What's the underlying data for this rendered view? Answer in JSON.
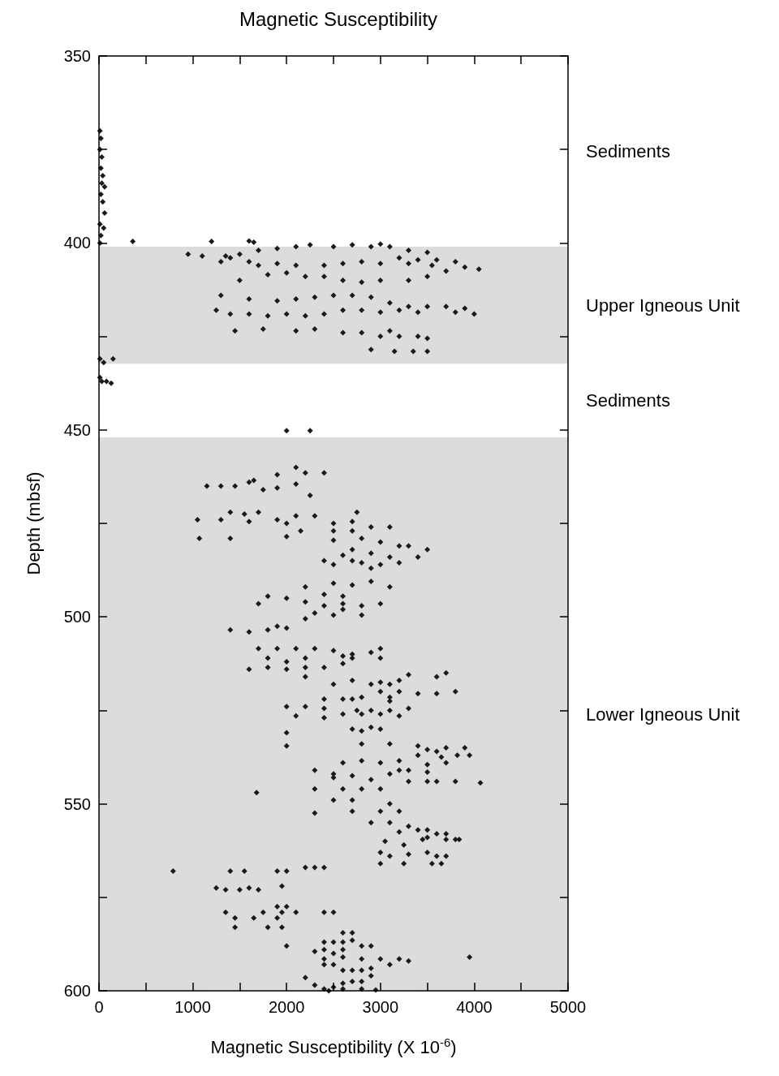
{
  "chart_data": {
    "type": "scatter",
    "title": "Magnetic Susceptibility",
    "xlabel": "Magnetic Susceptibility (X 10$^{-6}$)",
    "ylabel": "Depth (mbsf)",
    "xlim": [
      0,
      5000
    ],
    "xticks": [
      0,
      {
        "value": 500,
        "label": null
      },
      1000,
      {
        "value": 1500,
        "label": null
      },
      2000,
      {
        "value": 2500,
        "label": null
      },
      3000,
      {
        "value": 3500,
        "label": null
      },
      4000,
      {
        "value": 4500,
        "label": null
      },
      5000
    ],
    "ylim": [
      600,
      350
    ],
    "yticks": [
      350,
      {
        "value": 375,
        "label": null
      },
      400,
      {
        "value": 425,
        "label": null
      },
      450,
      {
        "value": 475,
        "label": null
      },
      500,
      {
        "value": 525,
        "label": null
      },
      550,
      {
        "value": 575,
        "label": null
      },
      600
    ],
    "grid": false,
    "marker": "diamond",
    "annotations": [
      "Sediments",
      "Sediments"
    ],
    "bands": [
      {
        "axis": "y",
        "from": 401,
        "to": 432.3,
        "label": "Upper Igneous Unit",
        "color": "#dcdcdc"
      },
      {
        "axis": "y",
        "from": 452,
        "to": 600,
        "label": "Lower Igneous Unit",
        "color": "#dcdcdc"
      }
    ],
    "series": [
      {
        "color": "#1a1a1a",
        "x": [
          10,
          20,
          10,
          30,
          20,
          40,
          30,
          60,
          20,
          40,
          60,
          10,
          50,
          20,
          10,
          360,
          1200,
          1600,
          1650,
          950,
          1100,
          1350,
          1500,
          1700,
          1900,
          2100,
          2250,
          2500,
          2700,
          2900,
          3000,
          3100,
          3300,
          3500,
          3200,
          3400,
          3600,
          3800,
          3900,
          4050,
          3700,
          3550,
          3300,
          3000,
          2800,
          2600,
          2400,
          2100,
          1900,
          1700,
          1600,
          1400,
          1300,
          1500,
          2200,
          2400,
          2600,
          2800,
          3000,
          3300,
          3500,
          1800,
          2000,
          1300,
          1600,
          1900,
          2100,
          2300,
          2500,
          2700,
          2900,
          3100,
          3300,
          3500,
          3700,
          3900,
          4000,
          3800,
          3400,
          3200,
          3000,
          2800,
          2600,
          2400,
          2200,
          2000,
          1800,
          1600,
          1400,
          1250,
          1450,
          1750,
          2100,
          2300,
          2600,
          2800,
          3000,
          3200,
          3400,
          3500,
          3100,
          2900,
          3150,
          3350,
          3500,
          10,
          50,
          150,
          10,
          30,
          80,
          130,
          2000,
          2250,
          1150,
          1300,
          1450,
          1600,
          1750,
          1900,
          2100,
          1900,
          2100,
          2200,
          2400,
          2250,
          1650,
          1050,
          1300,
          1400,
          1550,
          1700,
          1900,
          2100,
          2300,
          2500,
          2700,
          2750,
          1600,
          2000,
          1070,
          1400,
          2000,
          2150,
          2500,
          2700,
          2900,
          3100,
          2500,
          2800,
          3000,
          3200,
          3300,
          3500,
          2700,
          2900,
          3100,
          2600,
          2400,
          2800,
          3000,
          3200,
          3400,
          2500,
          2900,
          2700,
          2200,
          2500,
          2700,
          2900,
          3100,
          2400,
          2600,
          1800,
          2000,
          2200,
          2400,
          2600,
          2800,
          3000,
          1700,
          2600,
          2300,
          2500,
          2800,
          2200,
          1400,
          1600,
          1800,
          1900,
          2000,
          1700,
          1900,
          2100,
          2300,
          2500,
          2700,
          2900,
          3000,
          2600,
          1800,
          2000,
          2200,
          2700,
          3000,
          1600,
          1800,
          2000,
          2200,
          2400,
          2600,
          2200,
          2500,
          2700,
          3700,
          3600,
          3300,
          3100,
          2900,
          3000,
          3200,
          3000,
          3200,
          3400,
          3600,
          3800,
          2700,
          3100,
          2400,
          2600,
          2800,
          3100,
          2000,
          2200,
          2400,
          2750,
          2900,
          3100,
          3300,
          2100,
          2400,
          2600,
          2800,
          3000,
          3200,
          2700,
          2900,
          3000,
          2800,
          2000,
          2000,
          2800,
          3100,
          3400,
          3700,
          3900,
          3500,
          3600,
          3400,
          3650,
          3820,
          3950,
          2600,
          2800,
          3000,
          3200,
          3500,
          3700,
          2300,
          3200,
          3300,
          3500,
          2500,
          2700,
          3100,
          2500,
          2900,
          3300,
          3500,
          3600,
          3800,
          4066,
          2300,
          2600,
          2800,
          3000,
          1680,
          2500,
          2700,
          3100,
          2300,
          2700,
          3000,
          3200,
          2900,
          3100,
          3300,
          3500,
          3700,
          3200,
          3400,
          3600,
          3500,
          3700,
          3800,
          3840,
          3050,
          3250,
          3450,
          3000,
          3100,
          3300,
          3500,
          3600,
          3700,
          3000,
          3250,
          3550,
          3650,
          790,
          1400,
          1550,
          1900,
          2000,
          2200,
          2300,
          2400,
          1250,
          1350,
          1500,
          1600,
          1700,
          1950,
          1900,
          2000,
          1350,
          1750,
          1950,
          2100,
          2400,
          2500,
          1450,
          1650,
          1900,
          1450,
          1800,
          1950,
          2600,
          2700,
          2400,
          2500,
          2600,
          2700,
          2000,
          2800,
          2900,
          2300,
          2400,
          2500,
          2600,
          2400,
          2600,
          2800,
          3000,
          3200,
          3300,
          3950,
          2400,
          2500,
          3100,
          2600,
          2700,
          2800,
          2900,
          2600,
          2700,
          2800,
          2900,
          2200,
          2300,
          2500,
          2600,
          2400,
          2800,
          2950,
          2450
        ],
        "values": [
          370,
          372,
          375,
          377,
          380,
          382,
          384,
          385,
          387,
          389,
          392,
          395,
          396,
          398,
          400,
          399.6,
          399.6,
          399.5,
          399.8,
          403,
          403.5,
          403.5,
          403,
          402,
          401.5,
          401,
          400.5,
          401,
          400.5,
          401,
          400.3,
          401,
          402,
          402.5,
          404,
          404.5,
          404.5,
          405,
          406.5,
          407,
          407.5,
          406,
          405.5,
          405.5,
          405,
          405.5,
          406,
          406,
          405.5,
          406,
          405,
          404,
          405,
          410,
          409,
          409,
          410,
          410.5,
          410,
          410,
          409,
          408.5,
          408,
          414,
          415,
          415.5,
          415,
          414.5,
          414,
          414,
          414.5,
          416,
          417,
          417,
          417,
          417.5,
          419,
          418.5,
          418.5,
          418,
          418.5,
          418,
          418,
          419,
          419.5,
          419,
          419.5,
          419,
          419,
          418,
          423.5,
          423,
          423.5,
          423,
          424,
          424,
          425,
          425,
          425,
          425.5,
          423.5,
          428.5,
          429,
          429,
          429,
          431,
          432,
          431,
          436,
          437,
          437,
          437.5,
          450.2,
          450.2,
          465,
          465,
          465,
          464,
          466,
          465.5,
          464.5,
          462,
          460,
          461.5,
          461.5,
          467.5,
          463.5,
          474,
          474,
          472,
          472.5,
          472,
          474,
          473,
          473,
          475,
          474.5,
          472,
          474.5,
          475,
          479,
          479,
          478.5,
          477,
          477,
          477,
          476,
          476,
          479.5,
          479,
          480,
          481,
          481,
          482,
          482,
          483,
          484,
          483.5,
          485,
          485.5,
          486,
          485.5,
          484,
          486,
          487,
          485,
          492,
          491,
          491.5,
          490.5,
          492,
          494,
          494.5,
          494.5,
          495,
          496,
          497,
          496.5,
          497,
          496.5,
          496.5,
          498,
          499,
          499.5,
          499.5,
          500.5,
          503.5,
          504,
          503.5,
          502.5,
          503,
          508.5,
          508.5,
          508.5,
          508.5,
          509,
          510,
          509.5,
          508.5,
          510.5,
          511,
          512,
          511,
          511,
          511,
          514,
          513.5,
          514,
          513.5,
          513.5,
          512.5,
          516,
          518,
          517,
          515,
          516,
          515.5,
          518,
          518,
          517.5,
          517,
          520,
          520,
          520.5,
          520.5,
          520,
          522,
          521.5,
          522,
          522,
          521.5,
          522.5,
          524,
          524,
          524.5,
          525,
          525,
          525,
          524.5,
          526.5,
          527,
          526,
          526,
          526,
          526.5,
          530,
          529.5,
          530,
          530.5,
          531,
          534.5,
          534,
          534,
          534.5,
          535,
          535,
          535.5,
          536,
          537,
          537.5,
          537,
          537,
          539,
          538.5,
          539,
          538.5,
          539.5,
          539,
          541,
          541,
          541,
          541.5,
          542,
          542.5,
          542,
          543,
          543.5,
          544,
          544,
          544,
          544,
          544.4,
          546,
          546,
          546,
          546,
          547,
          549,
          549,
          550,
          552.5,
          552,
          552,
          552,
          555,
          555,
          556,
          557,
          558,
          557.5,
          557,
          558,
          559,
          559.5,
          559.5,
          559.5,
          560,
          561,
          559.5,
          563,
          564,
          563.5,
          563,
          564,
          564,
          566,
          566,
          566,
          566,
          568,
          568,
          568,
          568,
          568,
          567,
          567,
          567,
          572.5,
          573,
          573,
          572.5,
          573,
          572,
          577.5,
          577.5,
          579,
          579,
          579,
          579,
          579,
          579,
          580.5,
          580.5,
          580.5,
          583,
          583,
          583,
          584.5,
          584.5,
          587,
          587,
          587,
          586.5,
          588,
          588,
          588,
          589.5,
          589,
          590,
          589,
          591.5,
          591,
          591.5,
          591.5,
          591.5,
          592,
          591,
          593,
          593,
          593,
          594.5,
          594.5,
          594.5,
          594,
          598,
          597.5,
          597.5,
          596,
          596.5,
          598.5,
          599,
          599.5,
          599.5,
          599.5,
          599.8,
          600
        ]
      }
    ]
  }
}
